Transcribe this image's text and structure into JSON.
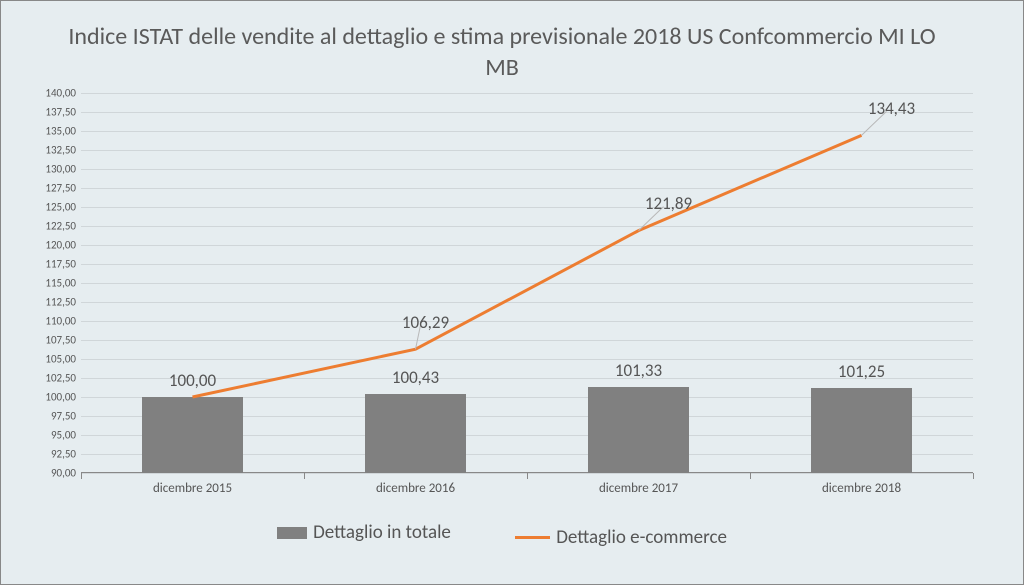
{
  "chart": {
    "type": "bar+line",
    "title": "Indice ISTAT delle vendite al dettaglio  e stima previsionale 2018 US Confcommercio MI LO MB",
    "title_fontsize": 24,
    "title_color": "#5a5a5a",
    "background_color": "#e6edf0",
    "border_color": "#888888",
    "grid_color": "#d0d6d9",
    "ylim": [
      90.0,
      140.0
    ],
    "yticks": [
      90.0,
      92.5,
      95.0,
      97.5,
      100.0,
      102.5,
      105.0,
      107.5,
      110.0,
      112.5,
      115.0,
      117.5,
      120.0,
      122.5,
      125.0,
      127.5,
      130.0,
      132.5,
      135.0,
      137.5,
      140.0
    ],
    "ytick_labels": [
      "90,00",
      "92,50",
      "95,00",
      "97,50",
      "100,00",
      "102,50",
      "105,00",
      "107,50",
      "110,00",
      "112,50",
      "115,00",
      "117,50",
      "120,00",
      "122,50",
      "125,00",
      "127,50",
      "130,00",
      "132,50",
      "135,00",
      "137,50",
      "140,00"
    ],
    "ytick_fontsize": 11,
    "categories": [
      "dicembre 2015",
      "dicembre 2016",
      "dicembre 2017",
      "dicembre 2018"
    ],
    "xtick_fontsize": 13,
    "series": {
      "bars": {
        "name": "Dettaglio in totale",
        "values": [
          100.0,
          100.43,
          101.33,
          101.25
        ],
        "value_labels": [
          "100,00",
          "100,43",
          "101,33",
          "101,25"
        ],
        "color": "#808080",
        "bar_width_frac": 0.45,
        "label_fontsize": 17
      },
      "line": {
        "name": "Dettaglio e-commerce",
        "values": [
          100.0,
          106.29,
          121.89,
          134.43
        ],
        "value_labels": [
          "100,00",
          "106,29",
          "121,89",
          "134,43"
        ],
        "color": "#ed7d31",
        "line_width": 3,
        "label_fontsize": 17
      }
    },
    "legend": {
      "fontsize": 19,
      "color": "#555555"
    }
  }
}
